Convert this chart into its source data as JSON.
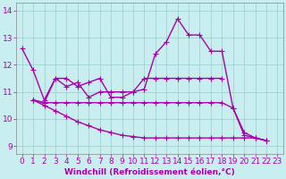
{
  "xlabel": "Windchill (Refroidissement éolien,°C)",
  "bg_color": "#c8eef0",
  "line_color": "#aa00aa",
  "grid_color": "#99cccc",
  "ylim": [
    8.7,
    14.3
  ],
  "xlim": [
    -0.5,
    23.5
  ],
  "yticks": [
    9,
    10,
    11,
    12,
    13,
    14
  ],
  "xticks": [
    0,
    1,
    2,
    3,
    4,
    5,
    6,
    7,
    8,
    9,
    10,
    11,
    12,
    13,
    14,
    15,
    16,
    17,
    18,
    19,
    20,
    21,
    22,
    23
  ],
  "marker": "+",
  "markersize": 4,
  "linewidth": 1.0,
  "fontsize_axis": 6.5,
  "lines": [
    {
      "x": [
        0,
        1,
        2,
        3,
        4,
        5,
        6,
        7,
        8,
        9,
        10,
        11,
        12,
        13,
        14,
        15,
        16,
        17,
        18,
        19,
        20,
        21,
        22,
        23
      ],
      "y": [
        12.6,
        11.8,
        10.7,
        11.5,
        11.5,
        11.2,
        11.35,
        11.5,
        10.8,
        10.8,
        11.0,
        11.1,
        12.4,
        12.85,
        13.7,
        13.1,
        13.1,
        12.5,
        12.5,
        10.4,
        9.4,
        9.3,
        9.2,
        null
      ]
    },
    {
      "x": [
        1,
        2,
        3,
        4,
        5,
        6,
        7,
        8,
        9,
        10,
        11,
        12,
        13,
        14,
        15,
        16,
        17,
        18,
        19,
        20,
        21,
        22
      ],
      "y": [
        10.7,
        10.6,
        11.5,
        11.2,
        11.35,
        10.8,
        11.0,
        11.0,
        11.0,
        11.0,
        11.5,
        11.5,
        11.5,
        11.5,
        11.5,
        11.5,
        11.5,
        11.5,
        null,
        null,
        null,
        null
      ]
    },
    {
      "x": [
        1,
        2,
        3,
        4,
        5,
        6,
        7,
        8,
        9,
        10,
        11,
        12,
        13,
        14,
        15,
        16,
        17,
        18,
        19,
        20,
        21,
        22,
        23
      ],
      "y": [
        10.7,
        10.6,
        10.6,
        10.6,
        10.6,
        10.6,
        10.6,
        10.6,
        10.6,
        10.6,
        10.6,
        10.6,
        10.6,
        10.6,
        10.6,
        10.6,
        10.6,
        10.6,
        10.4,
        9.5,
        9.3,
        9.2,
        null
      ]
    },
    {
      "x": [
        1,
        2,
        3,
        4,
        5,
        6,
        7,
        8,
        9,
        10,
        11,
        12,
        13,
        14,
        15,
        16,
        17,
        18,
        19,
        20,
        21,
        22,
        23
      ],
      "y": [
        10.7,
        10.5,
        10.3,
        10.1,
        9.9,
        9.75,
        9.6,
        9.5,
        9.4,
        9.35,
        9.3,
        9.3,
        9.3,
        9.3,
        9.3,
        9.3,
        9.3,
        9.3,
        9.3,
        9.3,
        9.3,
        9.2,
        null
      ]
    }
  ]
}
